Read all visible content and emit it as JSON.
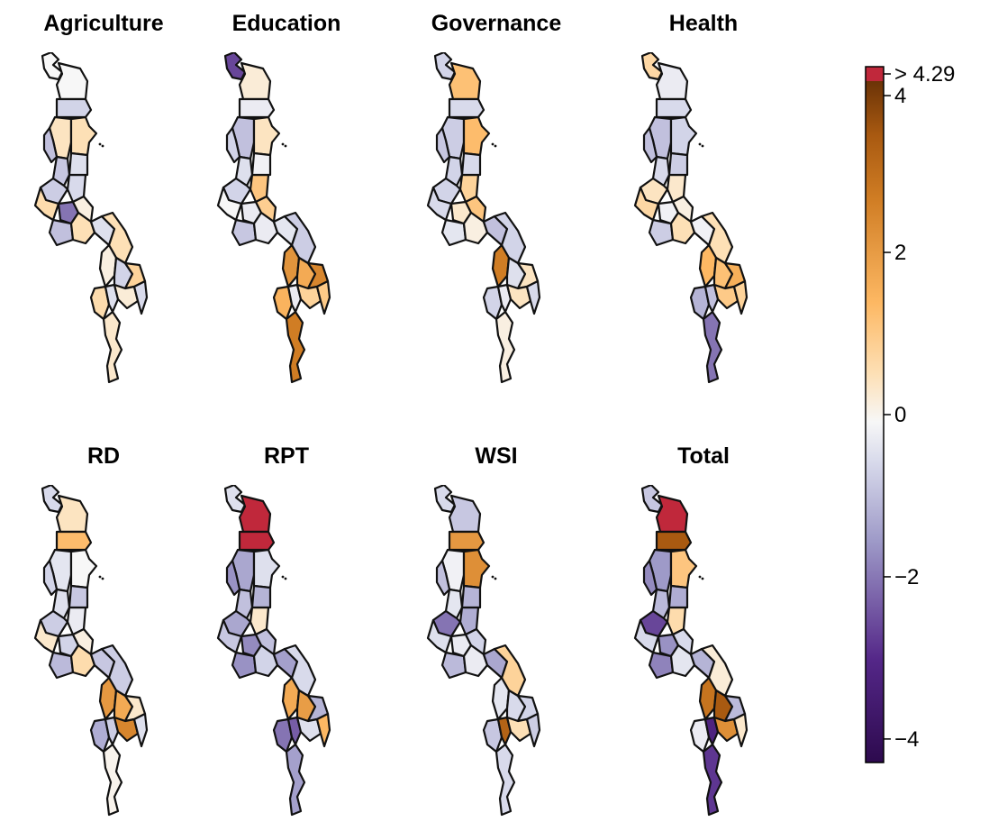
{
  "panels": [
    {
      "title": "Agriculture",
      "values": [
        0.0,
        0.0,
        -0.6,
        0.5,
        -0.9,
        0.6,
        -0.8,
        -0.5,
        -0.4,
        -0.7,
        0.7,
        -2.0,
        0.2,
        -0.9,
        0.6,
        -0.4,
        0.6,
        0.2,
        -0.6,
        0.9,
        0.7,
        -0.4,
        0.3,
        -0.5,
        0.4
      ]
    },
    {
      "title": "Education",
      "values": [
        -2.6,
        0.3,
        -0.2,
        -0.9,
        -0.6,
        0.5,
        -0.4,
        1.2,
        -0.1,
        -0.6,
        0.0,
        -0.2,
        1.0,
        -0.8,
        -0.2,
        -0.3,
        -0.7,
        2.3,
        1.8,
        2.6,
        1.6,
        -0.2,
        0.9,
        1.1,
        2.8
      ]
    },
    {
      "title": "Governance",
      "values": [
        -0.6,
        1.3,
        -0.5,
        -0.7,
        -0.8,
        1.4,
        -0.6,
        0.9,
        -0.5,
        -0.6,
        -0.5,
        0.4,
        1.2,
        -0.3,
        0.2,
        -0.9,
        -0.6,
        2.8,
        -0.4,
        0.5,
        -0.6,
        -0.2,
        0.5,
        -0.5,
        0.2
      ]
    },
    {
      "title": "Health",
      "values": [
        0.8,
        -0.2,
        -0.5,
        -0.9,
        -0.9,
        -0.6,
        -0.5,
        0.4,
        -0.7,
        0.5,
        0.8,
        -0.1,
        0.2,
        -0.7,
        0.6,
        -0.1,
        0.6,
        1.5,
        1.3,
        1.7,
        -1.1,
        -0.9,
        1.1,
        0.9,
        -2.0
      ]
    },
    {
      "title": "RD",
      "values": [
        -0.5,
        0.5,
        1.4,
        -0.3,
        -0.6,
        0.0,
        -0.4,
        -0.2,
        -0.8,
        -0.7,
        0.4,
        -0.6,
        0.2,
        -1.0,
        0.7,
        -0.8,
        -0.7,
        2.2,
        1.8,
        0.4,
        -1.2,
        -0.7,
        2.6,
        -0.4,
        0.1
      ]
    },
    {
      "title": "RPT",
      "values": [
        -0.4,
        4.6,
        4.6,
        -1.3,
        -1.6,
        -0.4,
        -0.9,
        0.4,
        -1.1,
        -1.3,
        -0.8,
        -1.7,
        -0.9,
        -1.6,
        -0.6,
        -1.4,
        -0.5,
        1.8,
        2.1,
        -1.1,
        -2.0,
        -2.3,
        -0.4,
        1.5,
        -1.4
      ]
    },
    {
      "title": "WSI",
      "values": [
        -0.5,
        -0.8,
        2.2,
        -0.1,
        -0.9,
        2.4,
        -0.3,
        -1.2,
        -1.1,
        -2.0,
        -0.4,
        -0.2,
        -0.6,
        -1.0,
        -0.2,
        -1.3,
        0.9,
        -0.3,
        -0.5,
        -0.6,
        -0.8,
        3.4,
        0.6,
        -0.7,
        -0.5
      ]
    },
    {
      "title": "Total",
      "values": [
        -0.8,
        4.6,
        3.6,
        -1.5,
        -1.7,
        1.2,
        -1.0,
        0.7,
        -1.2,
        -2.6,
        -0.5,
        -1.6,
        -0.5,
        -1.8,
        -0.3,
        -1.1,
        0.3,
        3.0,
        3.6,
        -1.0,
        -0.2,
        -3.2,
        2.4,
        0.4,
        -2.8
      ]
    }
  ],
  "legend": {
    "overflow_label": "> 4.29",
    "ticks": [
      {
        "value": 4,
        "label": "4"
      },
      {
        "value": 2,
        "label": "2"
      },
      {
        "value": 0,
        "label": "0"
      },
      {
        "value": -2,
        "label": "−2"
      },
      {
        "value": -4,
        "label": "−4"
      }
    ],
    "min": -4.29,
    "max": 4.29,
    "overflow_color": "#c0283b"
  },
  "palette": {
    "stops": [
      {
        "v": -4.29,
        "c": "#2d0a4e"
      },
      {
        "v": -3.0,
        "c": "#542788"
      },
      {
        "v": -1.5,
        "c": "#9e9ac8"
      },
      {
        "v": -0.5,
        "c": "#d8daeb"
      },
      {
        "v": 0.0,
        "c": "#f7f7f7"
      },
      {
        "v": 0.6,
        "c": "#fde0b6"
      },
      {
        "v": 1.5,
        "c": "#fdb863"
      },
      {
        "v": 2.8,
        "c": "#d07d24"
      },
      {
        "v": 3.6,
        "c": "#a95a11"
      },
      {
        "v": 4.29,
        "c": "#6b3307"
      }
    ]
  }
}
